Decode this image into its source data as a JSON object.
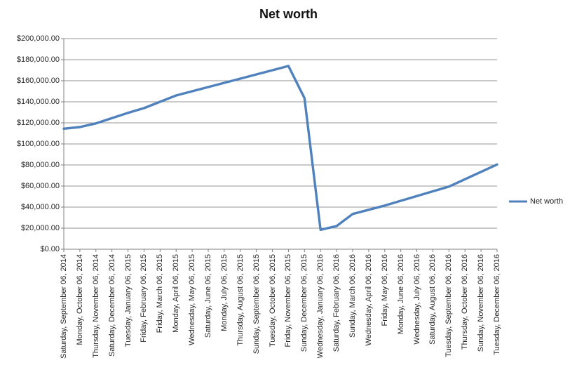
{
  "chart": {
    "title": "Net worth"
  },
  "legend": {
    "label": "Net worth"
  },
  "colors": {
    "series": "#4F81BD",
    "gridline": "#969696",
    "axis": "#808080",
    "text": "#262626"
  },
  "chart_data": {
    "type": "line",
    "title": "Net worth",
    "xlabel": "",
    "ylabel": "",
    "grid": true,
    "legend_position": "right",
    "ylim": [
      0,
      200000
    ],
    "ytick_step": 20000,
    "ytick_labels_top_to_bottom": [
      "$200,000.00",
      "$180,000.00",
      "$160,000.00",
      "$140,000.00",
      "$120,000.00",
      "$100,000.00",
      "$80,000.00",
      "$60,000.00",
      "$40,000.00",
      "$20,000.00",
      "$0.00"
    ],
    "categories": [
      "Saturday, September 06, 2014",
      "Monday, October 06, 2014",
      "Thursday, November 06, 2014",
      "Saturday, December 06, 2014",
      "Tuesday, January 06, 2015",
      "Friday, February 06, 2015",
      "Friday, March 06, 2015",
      "Monday, April 06, 2015",
      "Wednesday, May 06, 2015",
      "Saturday, June 06, 2015",
      "Monday, July 06, 2015",
      "Thursday, August 06, 2015",
      "Sunday, September 06, 2015",
      "Tuesday, October 06, 2015",
      "Friday, November 06, 2015",
      "Sunday, December 06, 2015",
      "Wednesday, January 06, 2016",
      "Saturday, February 06, 2016",
      "Sunday, March 06, 2016",
      "Wednesday, April 06, 2016",
      "Friday, May 06, 2016",
      "Monday, June 06, 2016",
      "Wednesday, July 06, 2016",
      "Saturday, August 06, 2016",
      "Tuesday, September 06, 2016",
      "Thursday, October 06, 2016",
      "Sunday, November 06, 2016",
      "Tuesday, December 06, 2016"
    ],
    "series": [
      {
        "name": "Net worth",
        "color": "#4F81BD",
        "values": [
          114500,
          116000,
          119500,
          124500,
          129500,
          134000,
          140000,
          146000,
          150000,
          154000,
          158000,
          162000,
          166000,
          170000,
          174000,
          143500,
          18500,
          22000,
          33500,
          37500,
          41500,
          46000,
          50500,
          55000,
          59500,
          66500,
          73500,
          80500
        ]
      }
    ]
  }
}
